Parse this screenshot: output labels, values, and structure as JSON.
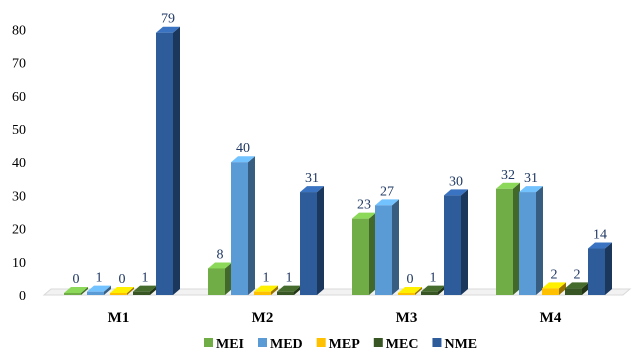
{
  "chart_data": {
    "type": "bar",
    "categories": [
      "M1",
      "M2",
      "M3",
      "M4"
    ],
    "series": [
      {
        "name": "MEI",
        "color": "#70ad47",
        "values": [
          0,
          8,
          23,
          32
        ]
      },
      {
        "name": "MED",
        "color": "#5b9bd5",
        "values": [
          1,
          40,
          27,
          31
        ]
      },
      {
        "name": "MEP",
        "color": "#ffc000",
        "values": [
          0,
          1,
          0,
          2
        ]
      },
      {
        "name": "MEC",
        "color": "#375623",
        "values": [
          1,
          1,
          1,
          2
        ]
      },
      {
        "name": "NME",
        "color": "#2e5c9a",
        "values": [
          79,
          31,
          30,
          14
        ]
      }
    ],
    "ylim": [
      0,
      80
    ],
    "yticks": [
      0,
      10,
      20,
      30,
      40,
      50,
      60,
      70,
      80
    ],
    "grid": false,
    "legend_position": "bottom",
    "style": "3d-column"
  }
}
